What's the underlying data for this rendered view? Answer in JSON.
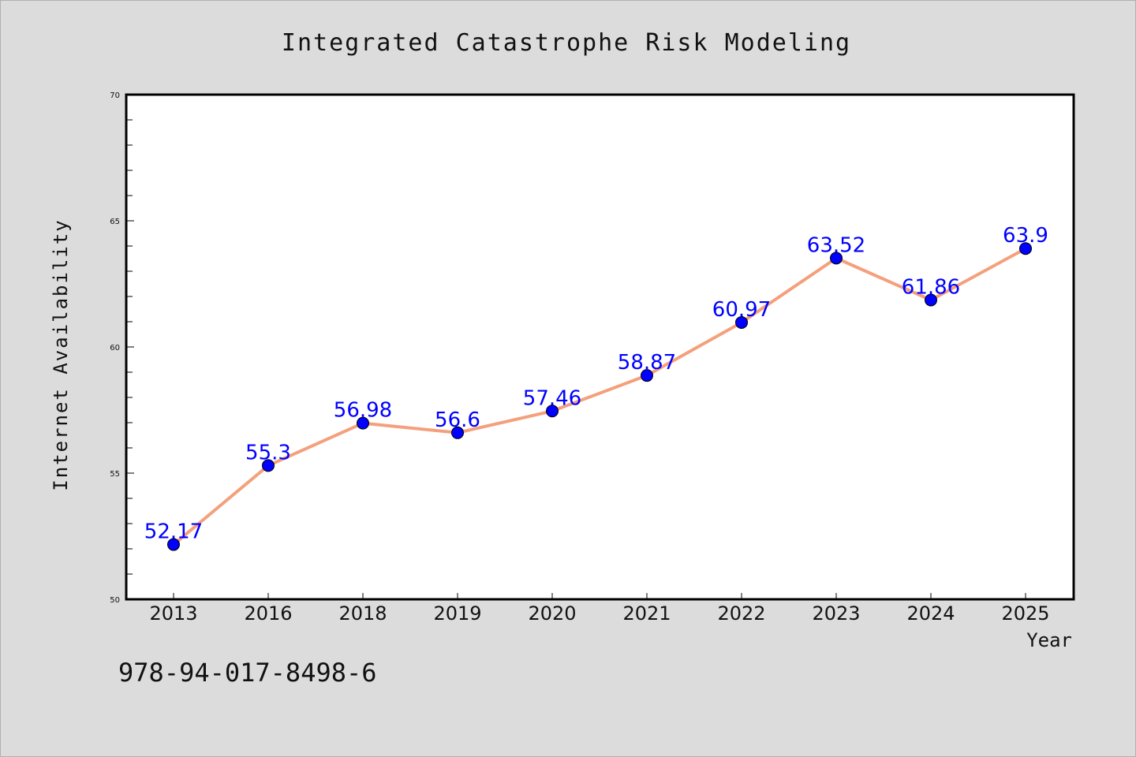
{
  "chart_data": {
    "type": "line",
    "title": "Integrated Catastrophe Risk Modeling",
    "xlabel": "Year",
    "ylabel": "Internet Availability",
    "categories": [
      "2013",
      "2016",
      "2018",
      "2019",
      "2020",
      "2021",
      "2022",
      "2023",
      "2024",
      "2025"
    ],
    "values": [
      52.17,
      55.3,
      56.98,
      56.6,
      57.46,
      58.87,
      60.97,
      63.52,
      61.86,
      63.9
    ],
    "data_labels": [
      "52.17",
      "55.3",
      "56.98",
      "56.6",
      "57.46",
      "58.87",
      "60.97",
      "63.52",
      "61.86",
      "63.9"
    ],
    "ylim": [
      50,
      70
    ],
    "yticks": [
      50,
      55,
      60,
      65,
      70
    ],
    "ytick_labels": [
      "50",
      "55",
      "60",
      "65",
      "70"
    ],
    "grid": false,
    "legend": "none",
    "line_color": "#f4a07c",
    "marker_color": "#0000ff",
    "label_color": "#0000ff",
    "background": "#dcdcdc",
    "plot_background": "#ffffff"
  },
  "footer": {
    "isbn": "978-94-017-8498-6"
  }
}
